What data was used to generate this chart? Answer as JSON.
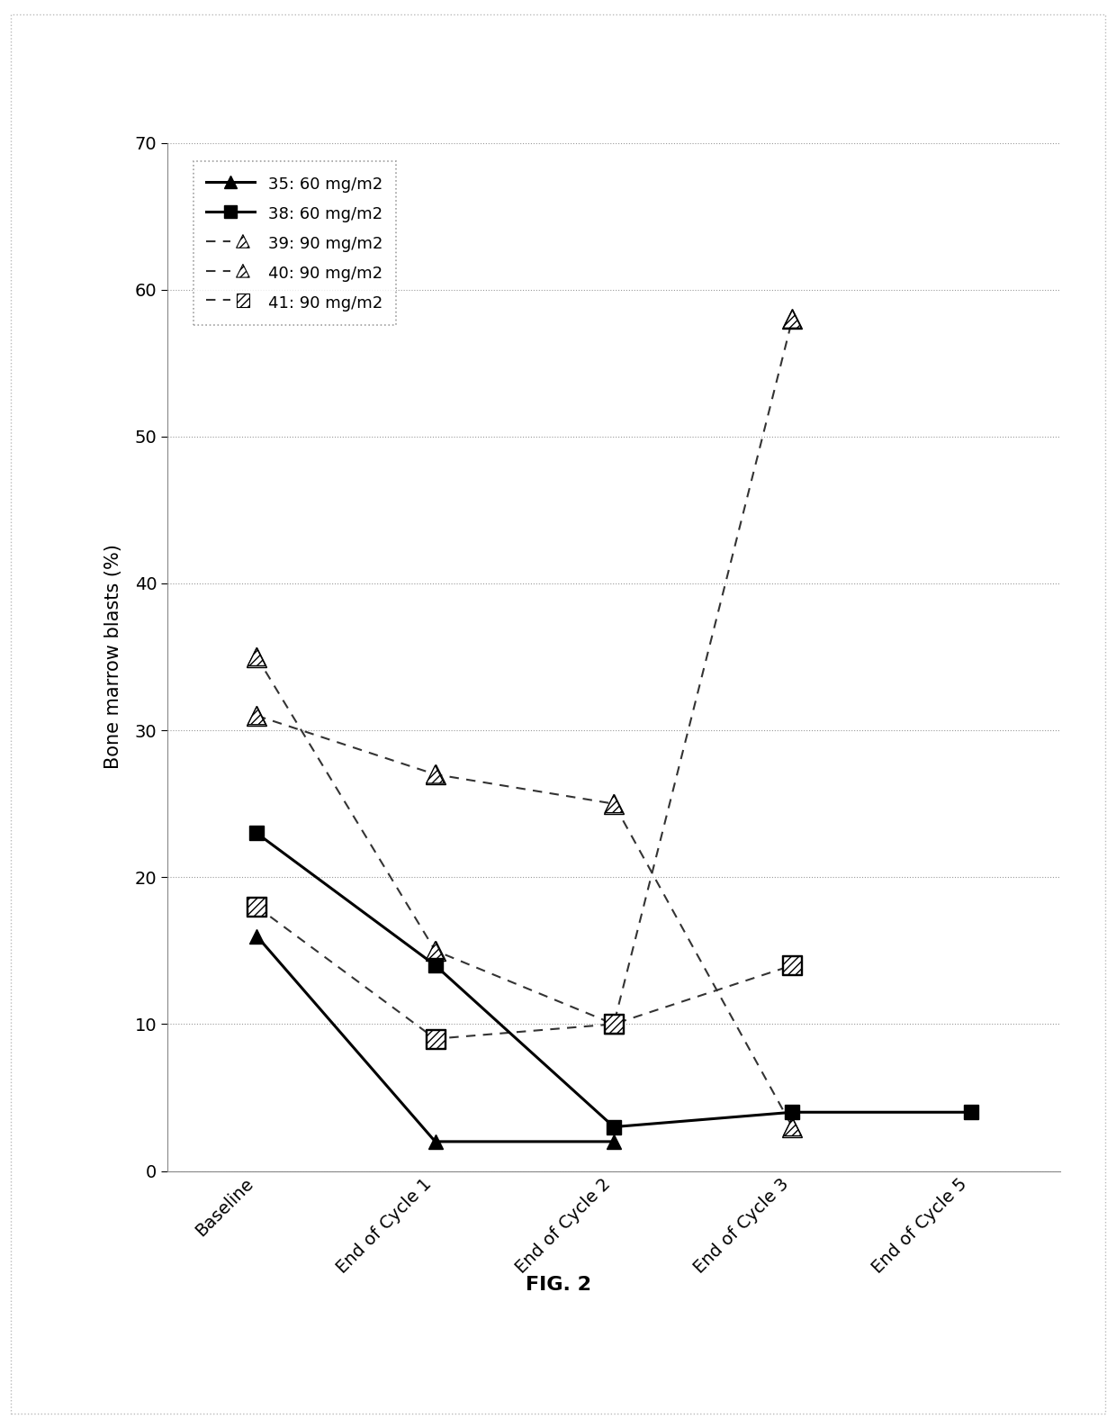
{
  "x_labels": [
    "Baseline",
    "End of Cycle 1",
    "End of Cycle 2",
    "End of Cycle 3",
    "End of Cycle 5"
  ],
  "x_positions": [
    0,
    1,
    2,
    3,
    4
  ],
  "series": [
    {
      "label": "35: 60 mg/m2",
      "x": [
        0,
        1,
        2
      ],
      "y": [
        16,
        2,
        2
      ],
      "linestyle": "solid",
      "linewidth": 2.2,
      "marker": "^",
      "markersize": 12,
      "solid": true
    },
    {
      "label": "38: 60 mg/m2",
      "x": [
        0,
        1,
        2,
        3,
        4
      ],
      "y": [
        23,
        14,
        3,
        4,
        4
      ],
      "linestyle": "solid",
      "linewidth": 2.2,
      "marker": "s",
      "markersize": 12,
      "solid": true
    },
    {
      "label": "39: 90 mg/m2",
      "x": [
        0,
        1,
        2,
        3
      ],
      "y": [
        35,
        15,
        10,
        58
      ],
      "linestyle": "dashed",
      "linewidth": 1.5,
      "marker": "^",
      "markersize": 16,
      "solid": false
    },
    {
      "label": "40: 90 mg/m2",
      "x": [
        0,
        1,
        2,
        3
      ],
      "y": [
        31,
        27,
        25,
        3
      ],
      "linestyle": "dashed",
      "linewidth": 1.5,
      "marker": "^",
      "markersize": 16,
      "solid": false
    },
    {
      "label": "41: 90 mg/m2",
      "x": [
        0,
        1,
        2,
        3
      ],
      "y": [
        18,
        9,
        10,
        14
      ],
      "linestyle": "dashed",
      "linewidth": 1.5,
      "marker": "s",
      "markersize": 16,
      "solid": false
    }
  ],
  "ylabel": "Bone marrow blasts (%)",
  "ylim": [
    0,
    70
  ],
  "yticks": [
    0,
    10,
    20,
    30,
    40,
    50,
    60,
    70
  ],
  "figure_label": "FIG. 2",
  "chart_border_color": "#aaaaaa",
  "grid_color": "#cccccc",
  "outer_border": "#cccccc"
}
